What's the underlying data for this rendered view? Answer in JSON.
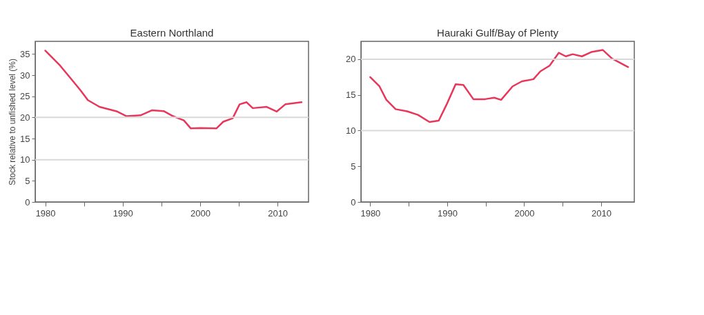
{
  "chart_data": [
    {
      "type": "line",
      "title": "Eastern Northland",
      "ylabel": "Stock relative to unfished level (%)",
      "x": [
        1980,
        1981.9,
        1983.4,
        1984.6,
        1985.5,
        1987,
        1989.3,
        1990.5,
        1992.3,
        1993.8,
        1995.3,
        1996.5,
        1997.9,
        1998.8,
        2000,
        2002.1,
        2003,
        2004.2,
        2005.1,
        2006,
        2006.8,
        2008.6,
        2009.9,
        2011,
        2013.1
      ],
      "series": [
        {
          "color": "#e8365a",
          "values": [
            35.8,
            32.3,
            29,
            26.3,
            24.1,
            22.5,
            21.4,
            20.3,
            20.5,
            21.7,
            21.5,
            20.3,
            19.3,
            17.4,
            17.5,
            17.4,
            19,
            19.8,
            23.1,
            23.6,
            22.2,
            22.5,
            21.4,
            23.1,
            23.6
          ]
        }
      ],
      "xlim": [
        1978.7,
        2014
      ],
      "xticks": [
        1980,
        {
          "value": 1985,
          "label": null
        },
        1990,
        {
          "value": 1995,
          "label": null
        },
        2000,
        {
          "value": 2005,
          "label": null
        },
        2010
      ],
      "ylim": [
        0,
        38
      ],
      "yticks": [
        0,
        5,
        10,
        15,
        20,
        25,
        30,
        35
      ],
      "ref_lines": [
        {
          "axis": "y",
          "value": 20,
          "color": "#d9d9d9"
        },
        {
          "axis": "y",
          "value": 10,
          "color": "#d9d9d9"
        }
      ],
      "marker": "none",
      "line_style": "solid"
    },
    {
      "type": "line",
      "title": "Hauraki Gulf/Bay of Plenty",
      "x": [
        1980,
        1981.2,
        1982.1,
        1983.3,
        1984.8,
        1986.2,
        1987.7,
        1988.9,
        1989.9,
        1991.1,
        1992.1,
        1993.4,
        1994.9,
        1996.1,
        1997,
        1998.5,
        1999.7,
        2001.2,
        2002.1,
        2003.3,
        2004.5,
        2005.4,
        2006.3,
        2007.5,
        2008.7,
        2010.2,
        2011.4,
        2013.5
      ],
      "series": [
        {
          "color": "#e8365a",
          "values": [
            17.5,
            16.2,
            14.3,
            13,
            12.7,
            12.2,
            11.2,
            11.4,
            13.6,
            16.5,
            16.4,
            14.4,
            14.4,
            14.6,
            14.3,
            16.2,
            16.9,
            17.2,
            18.3,
            19.1,
            20.9,
            20.4,
            20.7,
            20.4,
            21,
            21.3,
            20.1,
            18.9
          ]
        }
      ],
      "xlim": [
        1978.8,
        2014.3
      ],
      "xticks": [
        1980,
        {
          "value": 1985,
          "label": null
        },
        1990,
        {
          "value": 1995,
          "label": null
        },
        2000,
        {
          "value": 2005,
          "label": null
        },
        2010
      ],
      "ylim": [
        0,
        22.5
      ],
      "yticks": [
        0,
        5,
        10,
        15,
        20
      ],
      "ref_lines": [
        {
          "axis": "y",
          "value": 20,
          "color": "#d9d9d9"
        },
        {
          "axis": "y",
          "value": 10,
          "color": "#d9d9d9"
        }
      ],
      "marker": "none",
      "line_style": "solid"
    }
  ]
}
